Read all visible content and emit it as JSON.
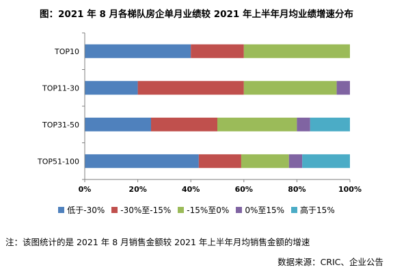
{
  "title": "图：2021 年 8 月各梯队房企单月业绩较 2021 年上半年月均业绩增速分布",
  "note": "注：该图统计的是 2021 年 8 月销售金额较 2021 年上半年月均销售金额的增速",
  "source": "数据来源：CRIC、企业公告",
  "chart_data": {
    "type": "bar",
    "orientation": "horizontal",
    "stacked": true,
    "percent_stacked": true,
    "categories": [
      "TOP10",
      "TOP11-30",
      "TOP31-50",
      "TOP51-100"
    ],
    "series": [
      {
        "name": "低于-30%",
        "color": "#4f81bd",
        "values": [
          40,
          20,
          25,
          43
        ]
      },
      {
        "name": "-30%至-15%",
        "color": "#c0504d",
        "values": [
          20,
          40,
          25,
          16
        ]
      },
      {
        "name": "-15%至0%",
        "color": "#9bbb59",
        "values": [
          40,
          35,
          30,
          18
        ]
      },
      {
        "name": "0%至15%",
        "color": "#8064a2",
        "values": [
          0,
          5,
          5,
          5
        ]
      },
      {
        "name": "高于15%",
        "color": "#4bacc6",
        "values": [
          0,
          0,
          15,
          18
        ]
      }
    ],
    "x_ticks": [
      "0%",
      "20%",
      "40%",
      "60%",
      "80%",
      "100%"
    ],
    "xlim": [
      0,
      100
    ],
    "grid": false,
    "legend_position": "bottom"
  }
}
